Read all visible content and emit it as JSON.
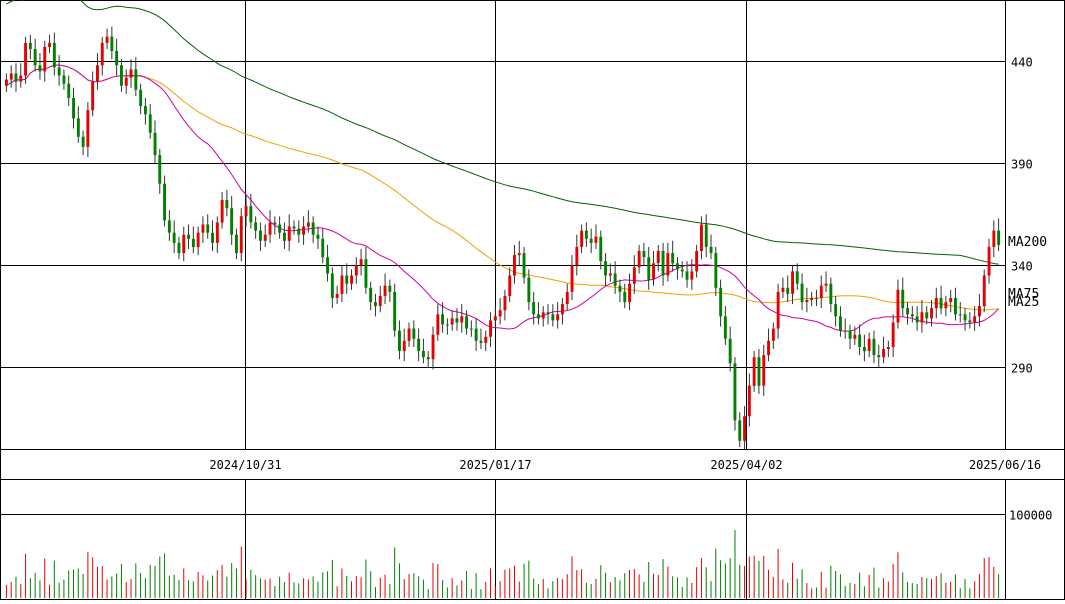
{
  "chart_data": {
    "type": "candlestick",
    "price_axis": {
      "range": [
        250,
        470
      ],
      "ticks": [
        290,
        340,
        390,
        440
      ]
    },
    "volume_axis": {
      "range": [
        0,
        140000
      ],
      "ticks": [
        100000
      ]
    },
    "x_labels": [
      "2024/10/31",
      "2025/01/17",
      "2025/04/02",
      "2025/06/16"
    ],
    "legend": [
      {
        "name": "MA200",
        "color": "#006400"
      },
      {
        "name": "MA75",
        "color": "#f0a000"
      },
      {
        "name": "MA25",
        "color": "#d000a0"
      }
    ],
    "colors": {
      "up": "#008000",
      "down": "#e60000",
      "grid": "#000000"
    },
    "closes": [
      428,
      431,
      434,
      430,
      433,
      449,
      446,
      438,
      435,
      447,
      449,
      437,
      433,
      429,
      422,
      412,
      403,
      398,
      416,
      430,
      438,
      449,
      452,
      445,
      438,
      428,
      432,
      436,
      426,
      418,
      414,
      405,
      394,
      380,
      362,
      356,
      351,
      346,
      355,
      353,
      349,
      356,
      360,
      356,
      351,
      361,
      372,
      368,
      355,
      346,
      364,
      369,
      361,
      357,
      352,
      355,
      361,
      360,
      356,
      352,
      359,
      358,
      355,
      359,
      361,
      355,
      353,
      344,
      336,
      324,
      326,
      335,
      331,
      335,
      340,
      343,
      329,
      322,
      320,
      325,
      330,
      327,
      308,
      298,
      303,
      309,
      304,
      298,
      295,
      294,
      306,
      316,
      311,
      311,
      314,
      312,
      315,
      309,
      309,
      303,
      302,
      305,
      313,
      315,
      318,
      325,
      335,
      345,
      346,
      334,
      322,
      316,
      314,
      317,
      316,
      313,
      316,
      321,
      327,
      340,
      349,
      357,
      353,
      351,
      354,
      342,
      335,
      336,
      330,
      327,
      322,
      331,
      339,
      347,
      344,
      333,
      341,
      347,
      335,
      346,
      341,
      338,
      337,
      333,
      337,
      347,
      360,
      349,
      346,
      329,
      315,
      304,
      292,
      264,
      254,
      266,
      281,
      295,
      281,
      296,
      303,
      309,
      327,
      329,
      326,
      337,
      331,
      322,
      323,
      324,
      324,
      330,
      331,
      321,
      315,
      308,
      308,
      304,
      306,
      300,
      298,
      304,
      296,
      295,
      299,
      300,
      312,
      328,
      319,
      316,
      315,
      312,
      317,
      314,
      319,
      324,
      319,
      322,
      324,
      316,
      316,
      313,
      312,
      315,
      320,
      335,
      349,
      357
    ],
    "opens": [
      431,
      434,
      430,
      433,
      449,
      446,
      438,
      435,
      447,
      449,
      437,
      433,
      429,
      422,
      412,
      403,
      398,
      416,
      430,
      438,
      449,
      452,
      445,
      438,
      428,
      432,
      436,
      426,
      418,
      414,
      405,
      394,
      380,
      362,
      356,
      351,
      346,
      355,
      353,
      349,
      356,
      360,
      356,
      351,
      361,
      372,
      368,
      355,
      346,
      364,
      369,
      361,
      357,
      352,
      355,
      361,
      360,
      356,
      352,
      359,
      358,
      355,
      359,
      361,
      355,
      353,
      344,
      336,
      324,
      326,
      335,
      331,
      335,
      340,
      343,
      329,
      322,
      320,
      325,
      330,
      327,
      308,
      298,
      303,
      309,
      304,
      298,
      295,
      294,
      306,
      316,
      311,
      311,
      314,
      312,
      315,
      309,
      309,
      303,
      302,
      305,
      313,
      315,
      318,
      325,
      335,
      345,
      346,
      334,
      322,
      316,
      314,
      317,
      316,
      313,
      316,
      321,
      327,
      340,
      349,
      357,
      353,
      351,
      354,
      342,
      335,
      336,
      330,
      327,
      322,
      331,
      339,
      347,
      344,
      333,
      341,
      347,
      335,
      346,
      341,
      338,
      337,
      333,
      337,
      347,
      360,
      349,
      346,
      329,
      315,
      304,
      292,
      264,
      254,
      266,
      281,
      295,
      281,
      296,
      303,
      309,
      327,
      329,
      326,
      337,
      331,
      322,
      323,
      324,
      324,
      330,
      331,
      321,
      315,
      308,
      308,
      304,
      306,
      300,
      298,
      304,
      296,
      295,
      299,
      300,
      312,
      328,
      319,
      316,
      315,
      312,
      317,
      314,
      319,
      324,
      319,
      322,
      324,
      316,
      316,
      313,
      312,
      315,
      320,
      335,
      349,
      357,
      350
    ]
  }
}
